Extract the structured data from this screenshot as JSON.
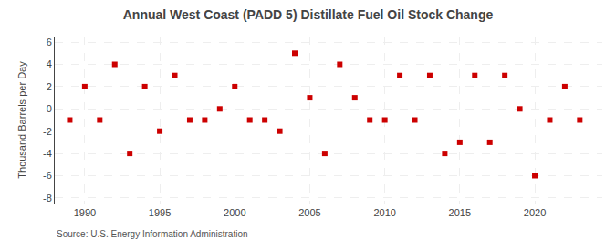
{
  "chart_data": {
    "type": "scatter",
    "title": "Annual West Coast (PADD 5) Distillate Fuel Oil Stock Change",
    "ylabel": "Thousand Barrels per Day",
    "annotations": [
      "Source: U.S. Energy Information Administration"
    ],
    "x": [
      1989,
      1990,
      1991,
      1992,
      1993,
      1994,
      1995,
      1996,
      1997,
      1998,
      1999,
      2000,
      2001,
      2002,
      2003,
      2004,
      2005,
      2006,
      2007,
      2008,
      2009,
      2010,
      2011,
      2012,
      2013,
      2014,
      2015,
      2016,
      2017,
      2018,
      2019,
      2020,
      2021,
      2022,
      2023
    ],
    "values": [
      -1,
      2,
      -1,
      4,
      -4,
      2,
      -2,
      3,
      -1,
      -1,
      0,
      2,
      -1,
      -1,
      -2,
      5,
      1,
      -4,
      4,
      1,
      -1,
      -1,
      3,
      -1,
      3,
      -4,
      -3,
      3,
      -3,
      3,
      0,
      -6,
      -1,
      2,
      -1
    ],
    "color": "#cc0000",
    "marker": "square",
    "xlim": [
      1988.0,
      2024.5
    ],
    "ylim": [
      -8.5,
      6.5
    ],
    "xticks": [
      1990,
      1995,
      2000,
      2005,
      2010,
      2015,
      2020
    ],
    "yticks": [
      -8,
      -6,
      -4,
      -2,
      0,
      2,
      4,
      6
    ],
    "grid": true
  }
}
